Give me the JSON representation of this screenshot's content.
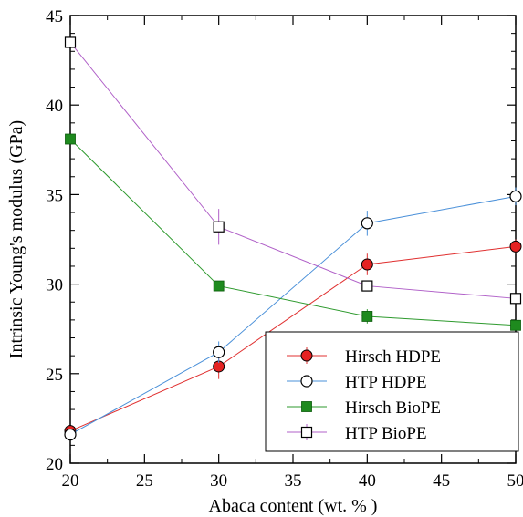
{
  "chart_data": {
    "type": "line",
    "title": "",
    "xlabel": "Abaca content (wt. % )",
    "ylabel": "Intrinsic Young's modulus (GPa)",
    "xlim": [
      20,
      50
    ],
    "ylim": [
      20,
      45
    ],
    "x_ticks": [
      "20",
      "25",
      "30",
      "35",
      "40",
      "45",
      "50"
    ],
    "y_ticks": [
      "20",
      "25",
      "30",
      "35",
      "40",
      "45"
    ],
    "grid": false,
    "legend_position": "bottom-right",
    "series": [
      {
        "name": "Hirsch HDPE",
        "color": "#e03030",
        "marker": "circle-filled",
        "x": [
          20,
          30,
          40,
          50
        ],
        "y": [
          21.8,
          25.4,
          31.1,
          32.1
        ],
        "err": [
          0,
          0.7,
          0.6,
          0.4
        ]
      },
      {
        "name": "HTP HDPE",
        "color": "#4a90d9",
        "marker": "circle-open",
        "x": [
          20,
          30,
          40,
          50
        ],
        "y": [
          21.6,
          26.2,
          33.4,
          34.9
        ],
        "err": [
          0,
          0.6,
          0.7,
          0.5
        ]
      },
      {
        "name": "Hirsch BioPE",
        "color": "#2e9a2e",
        "marker": "square-filled",
        "x": [
          20,
          30,
          40,
          50
        ],
        "y": [
          38.1,
          29.9,
          28.2,
          27.7
        ],
        "err": [
          0,
          0,
          0.4,
          0
        ]
      },
      {
        "name": "HTP BioPE",
        "color": "#b060c8",
        "marker": "square-open",
        "x": [
          20,
          30,
          40,
          50
        ],
        "y": [
          43.5,
          33.2,
          29.9,
          29.2
        ],
        "err": [
          0,
          1.0,
          0,
          0
        ]
      }
    ]
  }
}
